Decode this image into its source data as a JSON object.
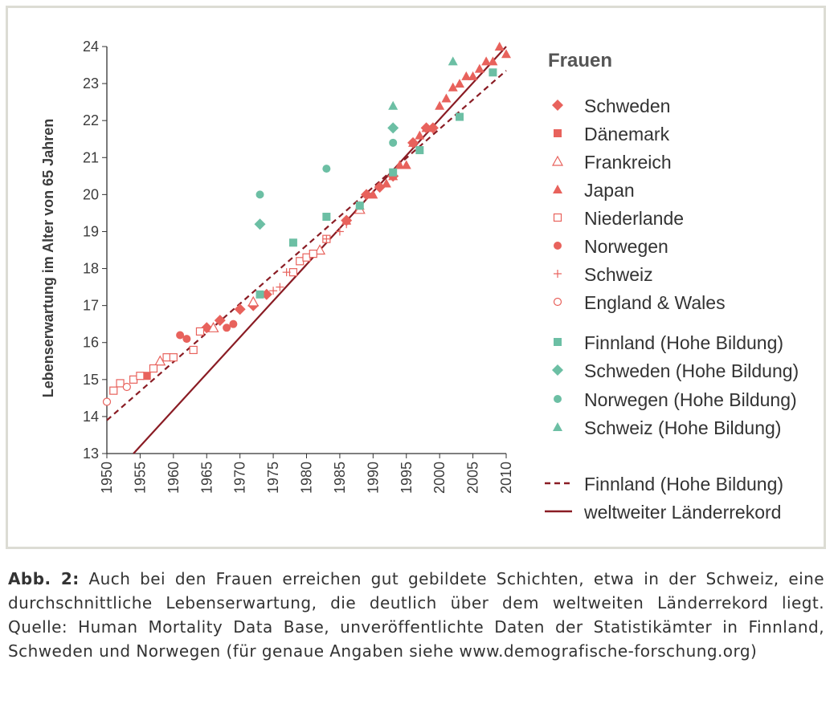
{
  "chart_data": {
    "type": "scatter",
    "ylabel": "Lebenserwartung im Alter von 65 Jahren",
    "legend_title": "Frauen",
    "xlim": [
      1950,
      2010
    ],
    "ylim": [
      13,
      24
    ],
    "x_ticks": [
      1950,
      1955,
      1960,
      1965,
      1970,
      1975,
      1980,
      1985,
      1990,
      1995,
      2000,
      2005,
      2010
    ],
    "y_ticks": [
      13,
      14,
      15,
      16,
      17,
      18,
      19,
      20,
      21,
      22,
      23,
      24
    ],
    "grid": false,
    "legend_position": "right",
    "colors": {
      "red": "#e8625c",
      "teal": "#6cbfa4",
      "line": "#8a1c24"
    },
    "series": [
      {
        "name": "Schweden",
        "marker": "diamond",
        "color": "#e8625c",
        "points": [
          [
            1965,
            16.4
          ],
          [
            1967,
            16.6
          ],
          [
            1970,
            16.9
          ],
          [
            1972,
            17.0
          ],
          [
            1974,
            17.3
          ],
          [
            1986,
            19.3
          ],
          [
            1989,
            20.0
          ],
          [
            1991,
            20.2
          ],
          [
            1993,
            20.5
          ],
          [
            1996,
            21.4
          ],
          [
            1998,
            21.8
          ],
          [
            1999,
            21.8
          ]
        ]
      },
      {
        "name": "Dänemark",
        "marker": "square",
        "color": "#e8625c",
        "points": [
          [
            1956,
            15.1
          ]
        ]
      },
      {
        "name": "Frankreich",
        "marker": "triangle-open",
        "color": "#e8625c",
        "points": [
          [
            1958,
            15.5
          ],
          [
            1966,
            16.4
          ],
          [
            1972,
            17.1
          ],
          [
            1982,
            18.5
          ],
          [
            1988,
            19.6
          ]
        ]
      },
      {
        "name": "Japan",
        "marker": "triangle",
        "color": "#e8625c",
        "points": [
          [
            1986,
            19.3
          ],
          [
            1988,
            19.7
          ],
          [
            1990,
            20.0
          ],
          [
            1992,
            20.3
          ],
          [
            1993,
            20.5
          ],
          [
            1994,
            20.8
          ],
          [
            1995,
            20.8
          ],
          [
            1996,
            21.4
          ],
          [
            1997,
            21.6
          ],
          [
            1998,
            21.8
          ],
          [
            2000,
            22.4
          ],
          [
            2001,
            22.6
          ],
          [
            2002,
            22.9
          ],
          [
            2003,
            23.0
          ],
          [
            2004,
            23.2
          ],
          [
            2005,
            23.2
          ],
          [
            2006,
            23.4
          ],
          [
            2007,
            23.6
          ],
          [
            2008,
            23.6
          ],
          [
            2009,
            24.0
          ],
          [
            2010,
            23.8
          ]
        ]
      },
      {
        "name": "Niederlande",
        "marker": "square-open",
        "color": "#e8625c",
        "points": [
          [
            1951,
            14.7
          ],
          [
            1952,
            14.9
          ],
          [
            1954,
            15.0
          ],
          [
            1955,
            15.1
          ],
          [
            1957,
            15.3
          ],
          [
            1959,
            15.6
          ],
          [
            1960,
            15.6
          ],
          [
            1963,
            15.8
          ],
          [
            1964,
            16.3
          ],
          [
            1978,
            17.9
          ],
          [
            1979,
            18.2
          ],
          [
            1980,
            18.3
          ],
          [
            1981,
            18.4
          ],
          [
            1983,
            18.8
          ]
        ]
      },
      {
        "name": "Norwegen",
        "marker": "circle",
        "color": "#e8625c",
        "points": [
          [
            1961,
            16.2
          ],
          [
            1962,
            16.1
          ],
          [
            1968,
            16.4
          ],
          [
            1969,
            16.5
          ]
        ]
      },
      {
        "name": "Schweiz",
        "marker": "plus",
        "color": "#e8625c",
        "points": [
          [
            1975,
            17.4
          ],
          [
            1976,
            17.5
          ],
          [
            1977,
            17.9
          ],
          [
            1983,
            18.8
          ],
          [
            1985,
            19.0
          ],
          [
            1986,
            19.2
          ]
        ]
      },
      {
        "name": "England & Wales",
        "marker": "circle-open",
        "color": "#e8625c",
        "points": [
          [
            1950,
            14.4
          ],
          [
            1953,
            14.8
          ]
        ]
      },
      {
        "name": "Finnland (Hohe Bildung)",
        "marker": "square",
        "color": "#6cbfa4",
        "points": [
          [
            1973,
            17.3
          ],
          [
            1978,
            18.7
          ],
          [
            1983,
            19.4
          ],
          [
            1988,
            19.7
          ],
          [
            1993,
            20.6
          ],
          [
            1997,
            21.2
          ],
          [
            2003,
            22.1
          ],
          [
            2008,
            23.3
          ]
        ]
      },
      {
        "name": "Schweden (Hohe Bildung)",
        "marker": "diamond",
        "color": "#6cbfa4",
        "points": [
          [
            1973,
            19.2
          ],
          [
            1993,
            21.8
          ]
        ]
      },
      {
        "name": "Norwegen (Hohe Bildung)",
        "marker": "circle",
        "color": "#6cbfa4",
        "points": [
          [
            1973,
            20.0
          ],
          [
            1983,
            20.7
          ],
          [
            1993,
            21.4
          ]
        ]
      },
      {
        "name": "Schweiz (Hohe Bildung)",
        "marker": "triangle",
        "color": "#6cbfa4",
        "points": [
          [
            1993,
            22.4
          ],
          [
            2002,
            23.6
          ]
        ]
      }
    ],
    "lines": [
      {
        "name": "Finnland (Hohe Bildung)",
        "style": "dashed",
        "color": "#8a1c24",
        "x": [
          1950,
          2010
        ],
        "y": [
          13.9,
          23.35
        ]
      },
      {
        "name": "weltweiter Länderrekord",
        "style": "solid",
        "color": "#8a1c24",
        "x": [
          1954,
          2010
        ],
        "y": [
          13.0,
          24.0
        ]
      }
    ]
  },
  "caption": {
    "label": "Abb. 2:",
    "text": " Auch bei den Frauen erreichen gut gebildete Schichten, etwa in der Schweiz, eine durchschnittliche Lebenserwartung, die deutlich über dem weltweiten Länderrekord liegt. Quelle: Human Mortality Data Base, unveröffentlichte Daten der Statistikämter in Finnland, Schweden und Norwegen (für genaue Angaben siehe www.demografische-forschung.org)"
  }
}
